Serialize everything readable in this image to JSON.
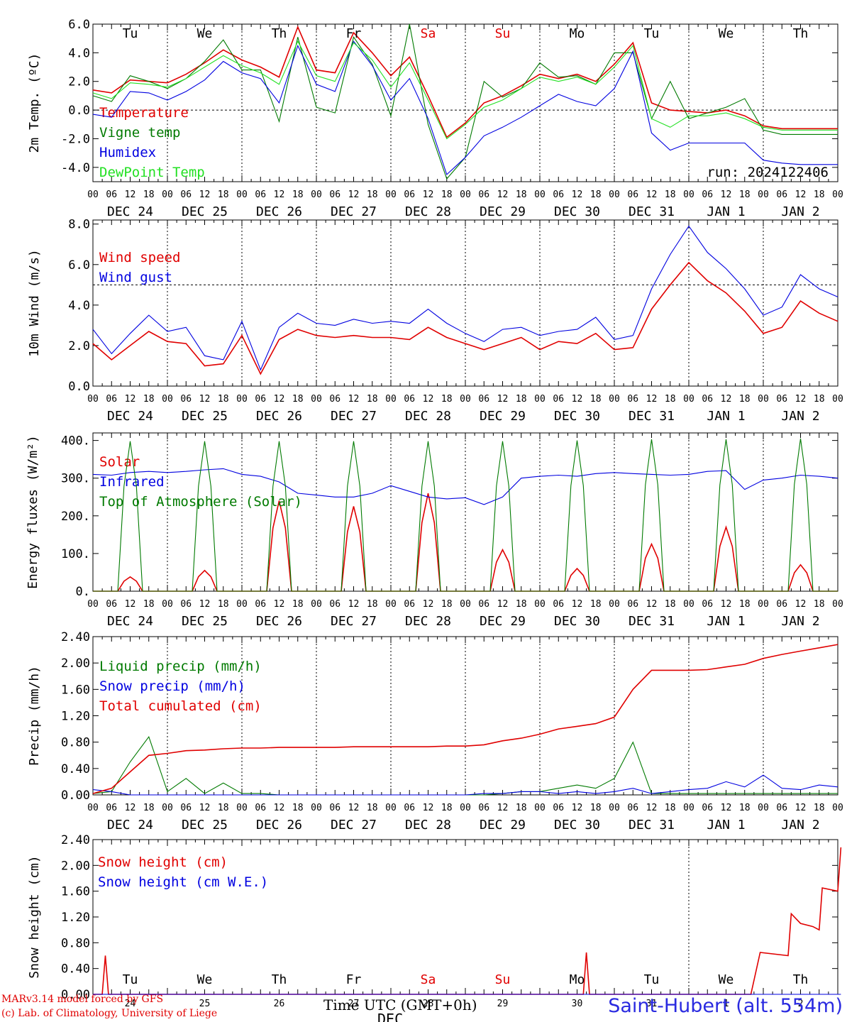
{
  "header": {
    "run": "run: 2024122406"
  },
  "days": [
    "Tu",
    "We",
    "Th",
    "Fr",
    "Sa",
    "Su",
    "Mo",
    "Tu",
    "We",
    "Th"
  ],
  "day_colors": [
    "#000",
    "#000",
    "#000",
    "#000",
    "#e00000",
    "#e00000",
    "#000",
    "#000",
    "#000",
    "#000"
  ],
  "hour_ticks": [
    "00",
    "06",
    "12",
    "18"
  ],
  "date_labels": [
    "DEC 24",
    "DEC 25",
    "DEC 26",
    "DEC 27",
    "DEC 28",
    "DEC 29",
    "DEC 30",
    "DEC 31",
    "JAN  1",
    "JAN  2"
  ],
  "bottom_day_numbers": [
    "24",
    "25",
    "26",
    "27",
    "28",
    "29",
    "30",
    "31",
    "1",
    "2"
  ],
  "footer": {
    "model": "MARv3.14 model forced by GFS",
    "lab": "(c) Lab. of Climatology, University of Liege",
    "xlabel_time": "Time UTC (GMT+0h)",
    "xlabel_dec": "DEC",
    "station": "Saint-Hubert (alt. 554m)"
  },
  "colors": {
    "red": "#e00000",
    "green": "#007a00",
    "blue": "#0000e0",
    "lightgreen": "#22e022"
  },
  "chart_data": [
    {
      "type": "line",
      "ylabel": "2m Temp. (ºC)",
      "ylim": [
        -5,
        6
      ],
      "yticks": [
        "-4.0",
        "-2.0",
        "0.0",
        "2.0",
        "4.0",
        "6.0"
      ],
      "ytick_values": [
        -4,
        -2,
        0,
        2,
        4,
        6
      ],
      "hline": 0,
      "x_hours": [
        0,
        6,
        12,
        18,
        24,
        30,
        36,
        42,
        48,
        54,
        60,
        66,
        72,
        78,
        84,
        90,
        96,
        102,
        108,
        114,
        120,
        126,
        132,
        138,
        144,
        150,
        156,
        162,
        168,
        174,
        180,
        186,
        192,
        198,
        204,
        210,
        216,
        222,
        228,
        234,
        240
      ],
      "series": [
        {
          "name": "Temperature",
          "color": "red",
          "values": [
            1.4,
            1.2,
            2.1,
            2.0,
            1.9,
            2.5,
            3.3,
            4.2,
            3.5,
            3.0,
            2.3,
            5.8,
            2.8,
            2.6,
            5.4,
            4.0,
            2.4,
            3.7,
            1.0,
            -1.9,
            -0.9,
            0.5,
            1.0,
            1.7,
            2.5,
            2.2,
            2.5,
            2.0,
            3.2,
            4.7,
            0.5,
            0.0,
            -0.1,
            -0.2,
            0.0,
            -0.4,
            -1.1,
            -1.3,
            -1.3,
            -1.3,
            -1.3
          ]
        },
        {
          "name": "Vigne temp",
          "color": "green",
          "values": [
            1.0,
            0.6,
            2.4,
            2.0,
            1.5,
            2.2,
            3.4,
            4.9,
            2.8,
            2.8,
            -0.8,
            5.1,
            0.2,
            -0.2,
            5.1,
            3.2,
            -0.4,
            6.0,
            -1.0,
            -4.8,
            -3.3,
            2.0,
            0.9,
            1.5,
            3.3,
            2.3,
            2.4,
            1.8,
            4.0,
            4.0,
            -0.6,
            2.0,
            -0.6,
            -0.2,
            0.2,
            0.8,
            -1.4,
            -1.7,
            -1.7,
            -1.7,
            -1.7
          ]
        },
        {
          "name": "Humidex",
          "color": "blue",
          "values": [
            -0.3,
            -0.5,
            1.3,
            1.2,
            0.7,
            1.3,
            2.1,
            3.4,
            2.6,
            2.2,
            0.5,
            4.5,
            1.8,
            1.3,
            4.8,
            3.1,
            0.7,
            2.2,
            -0.6,
            -4.5,
            -3.3,
            -1.8,
            -1.2,
            -0.5,
            0.3,
            1.1,
            0.6,
            0.3,
            1.5,
            4.1,
            -1.6,
            -2.8,
            -2.3,
            -2.3,
            -2.3,
            -2.3,
            -3.5,
            -3.7,
            -3.8,
            -3.8,
            -3.8
          ]
        },
        {
          "name": "DewPoint Temp",
          "color": "lightgreen",
          "values": [
            1.2,
            0.8,
            1.9,
            1.8,
            1.6,
            2.2,
            3.0,
            3.8,
            3.1,
            2.6,
            1.8,
            4.8,
            2.4,
            2.0,
            4.7,
            3.5,
            1.6,
            3.3,
            0.7,
            -2.0,
            -1.0,
            0.2,
            0.7,
            1.5,
            2.3,
            2.0,
            2.3,
            1.8,
            3.0,
            4.5,
            -0.6,
            -1.2,
            -0.4,
            -0.4,
            -0.2,
            -0.6,
            -1.2,
            -1.4,
            -1.4,
            -1.4,
            -1.4
          ]
        }
      ]
    },
    {
      "type": "line",
      "ylabel": "10m Wind (m/s)",
      "ylim": [
        0,
        8.2
      ],
      "yticks": [
        "0.0",
        "2.0",
        "4.0",
        "6.0",
        "8.0"
      ],
      "ytick_values": [
        0,
        2,
        4,
        6,
        8
      ],
      "hline": 5,
      "x_hours": [
        0,
        6,
        12,
        18,
        24,
        30,
        36,
        42,
        48,
        54,
        60,
        66,
        72,
        78,
        84,
        90,
        96,
        102,
        108,
        114,
        120,
        126,
        132,
        138,
        144,
        150,
        156,
        162,
        168,
        174,
        180,
        186,
        192,
        198,
        204,
        210,
        216,
        222,
        228,
        234,
        240
      ],
      "series": [
        {
          "name": "Wind speed",
          "color": "red",
          "values": [
            2.1,
            1.3,
            2.0,
            2.7,
            2.2,
            2.1,
            1.0,
            1.1,
            2.5,
            0.6,
            2.3,
            2.8,
            2.5,
            2.4,
            2.5,
            2.4,
            2.4,
            2.3,
            2.9,
            2.4,
            2.1,
            1.8,
            2.1,
            2.4,
            1.8,
            2.2,
            2.1,
            2.6,
            1.8,
            1.9,
            3.8,
            5.0,
            6.1,
            5.2,
            4.6,
            3.7,
            2.6,
            2.9,
            4.2,
            3.6,
            3.2
          ]
        },
        {
          "name": "Wind gust",
          "color": "blue",
          "values": [
            2.8,
            1.6,
            2.6,
            3.5,
            2.7,
            2.9,
            1.5,
            1.3,
            3.2,
            0.8,
            2.9,
            3.6,
            3.1,
            3.0,
            3.3,
            3.1,
            3.2,
            3.1,
            3.8,
            3.1,
            2.6,
            2.2,
            2.8,
            2.9,
            2.5,
            2.7,
            2.8,
            3.4,
            2.3,
            2.5,
            4.8,
            6.5,
            7.9,
            6.6,
            5.8,
            4.8,
            3.5,
            3.9,
            5.5,
            4.8,
            4.4
          ]
        }
      ]
    },
    {
      "type": "line",
      "ylabel": "Energy fluxes (W/m²)",
      "ylim": [
        0,
        420
      ],
      "yticks": [
        "0.",
        "100.",
        "200.",
        "300.",
        "400."
      ],
      "ytick_values": [
        0,
        100,
        200,
        300,
        400
      ],
      "series": [
        {
          "name": "Solar",
          "color": "red",
          "daily_peaks": [
            38,
            55,
            240,
            225,
            260,
            110,
            60,
            125,
            170,
            70
          ]
        },
        {
          "name": "Infrared",
          "color": "blue",
          "x_hours": [
            0,
            6,
            12,
            18,
            24,
            30,
            36,
            42,
            48,
            54,
            60,
            66,
            72,
            78,
            84,
            90,
            96,
            102,
            108,
            114,
            120,
            126,
            132,
            138,
            144,
            150,
            156,
            162,
            168,
            174,
            180,
            186,
            192,
            198,
            204,
            210,
            216,
            222,
            228,
            234,
            240
          ],
          "values": [
            310,
            308,
            315,
            318,
            315,
            318,
            322,
            325,
            310,
            305,
            290,
            260,
            255,
            250,
            250,
            260,
            280,
            265,
            250,
            245,
            248,
            230,
            250,
            300,
            305,
            308,
            305,
            312,
            315,
            312,
            310,
            308,
            310,
            318,
            320,
            270,
            295,
            300,
            308,
            305,
            300
          ]
        },
        {
          "name": "Top of Atmosphere (Solar)",
          "color": "green",
          "daily_peaks": [
            398,
            398,
            398,
            398,
            398,
            398,
            400,
            403,
            403,
            405
          ]
        }
      ]
    },
    {
      "type": "line",
      "ylabel": "Precip (mm/h)",
      "ylim": [
        0,
        2.4
      ],
      "yticks": [
        "0.00",
        "0.40",
        "0.80",
        "1.20",
        "1.60",
        "2.00",
        "2.40"
      ],
      "ytick_values": [
        0,
        0.4,
        0.8,
        1.2,
        1.6,
        2.0,
        2.4
      ],
      "x_hours": [
        0,
        6,
        12,
        18,
        24,
        30,
        36,
        42,
        48,
        54,
        60,
        66,
        72,
        78,
        84,
        90,
        96,
        102,
        108,
        114,
        120,
        126,
        132,
        138,
        144,
        150,
        156,
        162,
        168,
        174,
        180,
        186,
        192,
        198,
        204,
        210,
        216,
        222,
        228,
        234,
        240
      ],
      "series": [
        {
          "name": "Liquid precip (mm/h)",
          "color": "green",
          "values": [
            0.02,
            0.05,
            0.5,
            0.88,
            0.05,
            0.25,
            0.02,
            0.18,
            0.02,
            0.02,
            0.0,
            0.0,
            0.0,
            0.0,
            0.0,
            0.0,
            0.0,
            0.0,
            0.0,
            0.0,
            0.0,
            0.0,
            0.02,
            0.05,
            0.05,
            0.1,
            0.15,
            0.1,
            0.25,
            0.8,
            0.02,
            0.02,
            0.02,
            0.02,
            0.02,
            0.02,
            0.02,
            0.02,
            0.02,
            0.02,
            0.02
          ]
        },
        {
          "name": "Snow precip (mm/h)",
          "color": "blue",
          "values": [
            0.08,
            0.05,
            0.0,
            0.0,
            0.0,
            0.0,
            0.0,
            0.0,
            0.0,
            0.0,
            0.0,
            0.0,
            0.0,
            0.0,
            0.0,
            0.0,
            0.0,
            0.0,
            0.0,
            0.0,
            0.0,
            0.02,
            0.02,
            0.05,
            0.05,
            0.02,
            0.05,
            0.02,
            0.05,
            0.1,
            0.02,
            0.05,
            0.08,
            0.1,
            0.2,
            0.12,
            0.3,
            0.1,
            0.08,
            0.15,
            0.12
          ]
        },
        {
          "name": "Total cumulated (cm)",
          "color": "red",
          "values": [
            0.02,
            0.1,
            0.35,
            0.6,
            0.63,
            0.67,
            0.68,
            0.7,
            0.71,
            0.71,
            0.72,
            0.72,
            0.72,
            0.72,
            0.73,
            0.73,
            0.73,
            0.73,
            0.73,
            0.74,
            0.74,
            0.76,
            0.82,
            0.86,
            0.92,
            1.0,
            1.04,
            1.08,
            1.18,
            1.6,
            1.89,
            1.89,
            1.89,
            1.9,
            1.94,
            1.98,
            2.07,
            2.13,
            2.18,
            2.23,
            2.28
          ]
        }
      ]
    },
    {
      "type": "line",
      "ylabel": "Snow height (cm)",
      "ylim": [
        0,
        2.4
      ],
      "yticks": [
        "0.00",
        "0.40",
        "0.80",
        "1.20",
        "1.60",
        "2.00",
        "2.40"
      ],
      "ytick_values": [
        0,
        0.4,
        0.8,
        1.2,
        1.6,
        2.0,
        2.4
      ],
      "series": [
        {
          "name": "Snow height (cm)",
          "color": "red",
          "points": [
            [
              0,
              0
            ],
            [
              3,
              0
            ],
            [
              4,
              0.6
            ],
            [
              5,
              0
            ],
            [
              158,
              0
            ],
            [
              159,
              0.65
            ],
            [
              160,
              0
            ],
            [
              212,
              0
            ],
            [
              215,
              0.65
            ],
            [
              224,
              0.6
            ],
            [
              225,
              1.25
            ],
            [
              228,
              1.1
            ],
            [
              232,
              1.05
            ],
            [
              234,
              1.0
            ],
            [
              235,
              1.65
            ],
            [
              240,
              1.6
            ],
            [
              241,
              2.28
            ]
          ]
        },
        {
          "name": "Snow height (cm W.E.)",
          "color": "blue",
          "points": [
            [
              0,
              0
            ],
            [
              241,
              0
            ]
          ]
        }
      ]
    }
  ]
}
